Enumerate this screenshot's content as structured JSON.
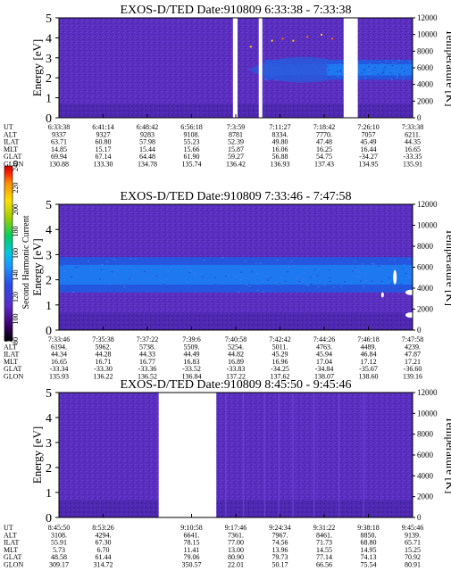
{
  "chart_data": [
    {
      "type": "heatmap",
      "title": "EXOS-D/TED   Date:910809  6:33:38 - 7:33:38",
      "ylabel": "Energy [eV]",
      "ylabel_right": "Temperature [K]",
      "ylim": [
        0,
        5
      ],
      "y_ticks": [
        "0",
        "1",
        "2",
        "3",
        "4",
        "5"
      ],
      "ylim_right": [
        0,
        12000
      ],
      "y_ticks_right": [
        "0",
        "2000",
        "4000",
        "6000",
        "8000",
        "10000",
        "12000"
      ],
      "data_gaps": [
        [
          0.492,
          0.505
        ],
        [
          0.565,
          0.575
        ],
        [
          0.805,
          0.845
        ]
      ],
      "band": {
        "center_ev": 2.4,
        "width_ev": 1.0,
        "start_fraction": 0.58
      },
      "row_labels": [
        "UT",
        "ALT",
        "ILAT",
        "MLT",
        "GLAT",
        "GLON"
      ],
      "columns": [
        [
          "6:33:38",
          "9337",
          "63.71",
          "14.85",
          "69.94",
          "130.88"
        ],
        [
          "6:41:14",
          "9327",
          "60.80",
          "15.17",
          "67.14",
          "133.30"
        ],
        [
          "6:48:42",
          "9283",
          "57.98",
          "15.44",
          "64.48",
          "134.78"
        ],
        [
          "6:56:18",
          "9108.",
          "55.23",
          "15.66",
          "61.90",
          "135.74"
        ],
        [
          "7:3:59",
          "8781",
          "52.39",
          "15.87",
          "59.27",
          "136.42"
        ],
        [
          "7:11:27",
          "8334.",
          "49.80",
          "16.06",
          "56.88",
          "136.93"
        ],
        [
          "7:18:42",
          "7770.",
          "47.48",
          "16.25",
          "54.75",
          "137.43"
        ],
        [
          "7:26:10",
          "7057",
          "45.49",
          "16.44",
          "-34.27",
          "134.95"
        ],
        [
          "7:33:38",
          "6211.",
          "44.35",
          "16.65",
          "-33.35",
          "135.91"
        ]
      ]
    },
    {
      "type": "heatmap",
      "title": "EXOS-D/TED   Date:910809  7:33:46 - 7:47:58",
      "ylabel": "Energy [eV]",
      "ylabel_right": "Temperature [K]",
      "ylim": [
        0,
        5
      ],
      "y_ticks": [
        "0",
        "1",
        "2",
        "3",
        "4",
        "5"
      ],
      "ylim_right": [
        0,
        12000
      ],
      "y_ticks_right": [
        "0",
        "2000",
        "4000",
        "6000",
        "8000",
        "10000",
        "12000"
      ],
      "data_gaps": [],
      "band": {
        "center_ev": 2.2,
        "width_ev": 1.4,
        "start_fraction": 0
      },
      "row_labels": [
        "UT",
        "ALT",
        "ILAT",
        "MLT",
        "GLAT",
        "GLON"
      ],
      "columns": [
        [
          "7:33:46",
          "6194.",
          "44.34",
          "16.65",
          "-33.34",
          "135.93"
        ],
        [
          "7:35:38",
          "5962.",
          "44.28",
          "16.71",
          "-33.30",
          "136.22"
        ],
        [
          "7:37:22",
          "5738.",
          "44.33",
          "16.77",
          "-33.36",
          "136.52"
        ],
        [
          "7:39:6",
          "5509.",
          "44.49",
          "16.83",
          "-33.52",
          "136.84"
        ],
        [
          "7:40:58",
          "5254.",
          "44.82",
          "16.89",
          "-33.83",
          "137.22"
        ],
        [
          "7:42:42",
          "5011.",
          "45.29",
          "16.96",
          "-34.25",
          "137.62"
        ],
        [
          "7:44:26",
          "4763.",
          "45.94",
          "17.04",
          "-34.84",
          "138.07"
        ],
        [
          "7:46:18",
          "4489.",
          "46.84",
          "17.12",
          "-35.67",
          "138.60"
        ],
        [
          "7:47:58",
          "4239.",
          "47.87",
          "17.21",
          "-36.60",
          "139.16"
        ]
      ]
    },
    {
      "type": "heatmap",
      "title": "EXOS-D/TED   Date:910809  8:45:50 - 9:45:46",
      "ylabel": "Energy [eV]",
      "ylabel_right": "Temperature [K]",
      "ylim": [
        0,
        5
      ],
      "y_ticks": [
        "0",
        "1",
        "2",
        "3",
        "4",
        "5"
      ],
      "ylim_right": [
        0,
        12000
      ],
      "y_ticks_right": [
        "0",
        "2000",
        "4000",
        "6000",
        "8000",
        "10000",
        "12000"
      ],
      "data_gaps": [
        [
          0.282,
          0.445
        ]
      ],
      "band": null,
      "row_labels": [
        "UT",
        "ALT",
        "ILAT",
        "MLT",
        "GLAT",
        "GLON"
      ],
      "columns": [
        [
          "8:45:50",
          "3108.",
          "55.91",
          "5.73",
          "48.58",
          "309.17"
        ],
        [
          "8:53:26",
          "4294.",
          "67.30",
          "6.70",
          "61.44",
          "314.72"
        ],
        [
          "",
          "",
          "",
          "",
          "",
          ""
        ],
        [
          "9:10:58",
          "6641.",
          "78.15",
          "11.41",
          "79.06",
          "350.57"
        ],
        [
          "9:17:46",
          "7361.",
          "77.00",
          "13.00",
          "80.90",
          "22.01"
        ],
        [
          "9:24:34",
          "7967.",
          "74.56",
          "13.96",
          "79.73",
          "50.17"
        ],
        [
          "9:31:22",
          "8461.",
          "71.73",
          "14.55",
          "77.14",
          "66.56"
        ],
        [
          "9:38:18",
          "8850.",
          "68.80",
          "14.95",
          "74.13",
          "75.54"
        ],
        [
          "9:45:46",
          "9139.",
          "65.71",
          "15.25",
          "70.92",
          "80.91"
        ]
      ]
    }
  ],
  "colorbar": {
    "label": "Second Harmonic Current",
    "ticks": [
      "80",
      "100",
      "120",
      "140",
      "160",
      "180",
      "200",
      "220",
      "240"
    ],
    "range": [
      80,
      240
    ],
    "colors": [
      "#000000",
      "#3a006e",
      "#5a2cc8",
      "#2a4be8",
      "#1e90ff",
      "#00c8e6",
      "#00d060",
      "#9ad000",
      "#ffe000",
      "#ff9000",
      "#ff2000",
      "#d00000"
    ]
  }
}
